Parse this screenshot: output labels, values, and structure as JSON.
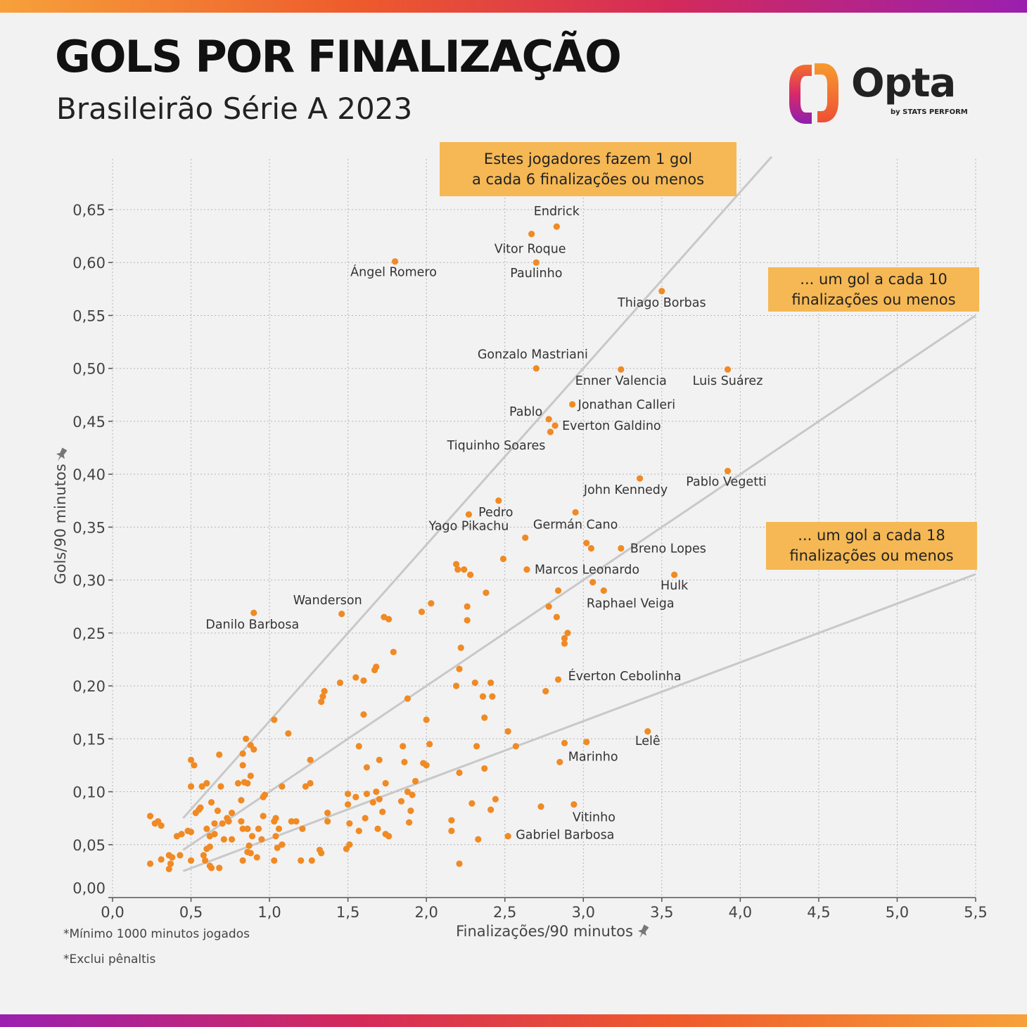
{
  "header": {
    "title": "GOLS POR FINALIZAÇÃO",
    "subtitle": "Brasileirão Série A 2023",
    "logo_text": "Opta",
    "logo_byline": "by STATS PERFORM"
  },
  "footnotes": [
    "*Mínimo 1000 minutos jogados",
    "*Exclui pênaltis"
  ],
  "callouts": [
    {
      "line1": "Estes jogadores fazem 1 gol",
      "line2": "a cada 6 finalizações ou menos"
    },
    {
      "line1": "... um gol a cada 10",
      "line2": "finalizações ou menos"
    },
    {
      "line1": "... um gol a cada 18",
      "line2": "finalizações ou menos"
    }
  ],
  "colors": {
    "point": "#f08a24",
    "ref_line": "#c8c8c8",
    "grid": "#b5b5b5",
    "callout_bg": "#f5b854"
  },
  "chart_data": {
    "type": "scatter",
    "xlabel": "Finalizações/90 minutos",
    "ylabel": "Gols/90 minutos",
    "xlim": [
      0,
      5.5
    ],
    "ylim": [
      0,
      0.65
    ],
    "xticks": [
      "0,0",
      "0,5",
      "1,0",
      "1,5",
      "2,0",
      "2,5",
      "3,0",
      "3,5",
      "4,0",
      "4,5",
      "5,0",
      "5,5"
    ],
    "yticks": [
      "0,00",
      "0,05",
      "0,10",
      "0,15",
      "0,20",
      "0,25",
      "0,30",
      "0,35",
      "0,40",
      "0,45",
      "0,50",
      "0,55",
      "0,60",
      "0,65"
    ],
    "grid": true,
    "reference_lines": [
      {
        "shots_per_goal": 6,
        "x": [
          0.45,
          4.2
        ]
      },
      {
        "shots_per_goal": 10,
        "x": [
          0.45,
          5.5
        ]
      },
      {
        "shots_per_goal": 18,
        "x": [
          0.45,
          5.5
        ]
      }
    ],
    "labeled_points": [
      {
        "name": "Endrick",
        "x": 2.83,
        "y": 0.634
      },
      {
        "name": "Vitor Roque",
        "x": 2.67,
        "y": 0.627
      },
      {
        "name": "Ángel Romero",
        "x": 1.8,
        "y": 0.601
      },
      {
        "name": "Paulinho",
        "x": 2.7,
        "y": 0.6
      },
      {
        "name": "Thiago Borbas",
        "x": 3.5,
        "y": 0.573
      },
      {
        "name": "Gonzalo Mastriani",
        "x": 2.7,
        "y": 0.5
      },
      {
        "name": "Enner Valencia",
        "x": 3.24,
        "y": 0.499
      },
      {
        "name": "Luis Suárez",
        "x": 3.92,
        "y": 0.499
      },
      {
        "name": "Jonathan Calleri",
        "x": 2.93,
        "y": 0.466
      },
      {
        "name": "Pablo",
        "x": 2.78,
        "y": 0.452
      },
      {
        "name": "Everton Galdino",
        "x": 2.82,
        "y": 0.446
      },
      {
        "name": "Tiquinho Soares",
        "x": 2.79,
        "y": 0.44
      },
      {
        "name": "John Kennedy",
        "x": 3.36,
        "y": 0.396
      },
      {
        "name": "Pablo Vegetti",
        "x": 3.92,
        "y": 0.403
      },
      {
        "name": "Pedro",
        "x": 2.46,
        "y": 0.375
      },
      {
        "name": "Yago Pikachu",
        "x": 2.27,
        "y": 0.362
      },
      {
        "name": "Germán Cano",
        "x": 2.95,
        "y": 0.364
      },
      {
        "name": "Breno Lopes",
        "x": 3.24,
        "y": 0.33
      },
      {
        "name": "Marcos Leonardo",
        "x": 2.64,
        "y": 0.31
      },
      {
        "name": "Hulk",
        "x": 3.58,
        "y": 0.305
      },
      {
        "name": "Raphael Veiga",
        "x": 3.13,
        "y": 0.29
      },
      {
        "name": "Wanderson",
        "x": 1.46,
        "y": 0.268
      },
      {
        "name": "Danilo Barbosa",
        "x": 0.9,
        "y": 0.269
      },
      {
        "name": "Éverton Cebolinha",
        "x": 2.84,
        "y": 0.206
      },
      {
        "name": "Lelê",
        "x": 3.41,
        "y": 0.157
      },
      {
        "name": "Marinho",
        "x": 2.85,
        "y": 0.128
      },
      {
        "name": "Vitinho",
        "x": 2.94,
        "y": 0.088
      },
      {
        "name": "Gabriel Barbosa",
        "x": 2.52,
        "y": 0.058
      }
    ],
    "other_points": [
      [
        3.02,
        0.147
      ],
      [
        2.88,
        0.146
      ],
      [
        2.57,
        0.143
      ],
      [
        2.52,
        0.157
      ],
      [
        2.73,
        0.086
      ],
      [
        2.76,
        0.195
      ],
      [
        2.88,
        0.245
      ],
      [
        2.9,
        0.25
      ],
      [
        2.88,
        0.24
      ],
      [
        2.84,
        0.29
      ],
      [
        2.78,
        0.275
      ],
      [
        2.83,
        0.265
      ],
      [
        3.06,
        0.298
      ],
      [
        3.02,
        0.335
      ],
      [
        3.05,
        0.33
      ],
      [
        2.63,
        0.34
      ],
      [
        2.49,
        0.32
      ],
      [
        2.38,
        0.288
      ],
      [
        2.26,
        0.275
      ],
      [
        2.26,
        0.262
      ],
      [
        2.22,
        0.236
      ],
      [
        2.21,
        0.216
      ],
      [
        2.31,
        0.203
      ],
      [
        2.41,
        0.203
      ],
      [
        2.36,
        0.19
      ],
      [
        2.42,
        0.19
      ],
      [
        2.37,
        0.17
      ],
      [
        2.32,
        0.143
      ],
      [
        2.37,
        0.122
      ],
      [
        2.21,
        0.118
      ],
      [
        2.29,
        0.089
      ],
      [
        2.44,
        0.093
      ],
      [
        2.41,
        0.083
      ],
      [
        2.33,
        0.055
      ],
      [
        2.21,
        0.032
      ],
      [
        2.16,
        0.063
      ],
      [
        2.16,
        0.073
      ],
      [
        2.19,
        0.2
      ],
      [
        2.24,
        0.31
      ],
      [
        2.19,
        0.315
      ],
      [
        2.2,
        0.31
      ],
      [
        2.28,
        0.305
      ],
      [
        2.03,
        0.278
      ],
      [
        1.97,
        0.27
      ],
      [
        2.0,
        0.168
      ],
      [
        2.02,
        0.145
      ],
      [
        1.98,
        0.127
      ],
      [
        2.0,
        0.125
      ],
      [
        1.93,
        0.11
      ],
      [
        1.88,
        0.188
      ],
      [
        1.85,
        0.143
      ],
      [
        1.86,
        0.128
      ],
      [
        1.88,
        0.1
      ],
      [
        1.91,
        0.097
      ],
      [
        1.9,
        0.082
      ],
      [
        1.89,
        0.071
      ],
      [
        1.84,
        0.091
      ],
      [
        1.76,
        0.263
      ],
      [
        1.73,
        0.265
      ],
      [
        1.79,
        0.232
      ],
      [
        1.68,
        0.218
      ],
      [
        1.67,
        0.215
      ],
      [
        1.6,
        0.205
      ],
      [
        1.55,
        0.208
      ],
      [
        1.6,
        0.173
      ],
      [
        1.57,
        0.143
      ],
      [
        1.62,
        0.123
      ],
      [
        1.7,
        0.13
      ],
      [
        1.74,
        0.108
      ],
      [
        1.68,
        0.1
      ],
      [
        1.62,
        0.098
      ],
      [
        1.66,
        0.09
      ],
      [
        1.7,
        0.093
      ],
      [
        1.72,
        0.081
      ],
      [
        1.76,
        0.058
      ],
      [
        1.74,
        0.06
      ],
      [
        1.69,
        0.065
      ],
      [
        1.61,
        0.075
      ],
      [
        1.57,
        0.063
      ],
      [
        1.55,
        0.095
      ],
      [
        1.5,
        0.098
      ],
      [
        1.5,
        0.088
      ],
      [
        1.51,
        0.07
      ],
      [
        1.51,
        0.05
      ],
      [
        1.49,
        0.046
      ],
      [
        1.45,
        0.203
      ],
      [
        1.35,
        0.195
      ],
      [
        1.34,
        0.19
      ],
      [
        1.33,
        0.185
      ],
      [
        1.26,
        0.108
      ],
      [
        1.23,
        0.105
      ],
      [
        1.26,
        0.13
      ],
      [
        1.37,
        0.072
      ],
      [
        1.37,
        0.08
      ],
      [
        1.32,
        0.045
      ],
      [
        1.27,
        0.035
      ],
      [
        1.33,
        0.042
      ],
      [
        1.21,
        0.065
      ],
      [
        1.2,
        0.035
      ],
      [
        1.17,
        0.072
      ],
      [
        1.12,
        0.155
      ],
      [
        1.14,
        0.072
      ],
      [
        1.08,
        0.105
      ],
      [
        1.06,
        0.065
      ],
      [
        1.04,
        0.075
      ],
      [
        1.03,
        0.168
      ],
      [
        1.03,
        0.072
      ],
      [
        1.04,
        0.058
      ],
      [
        1.05,
        0.047
      ],
      [
        1.08,
        0.05
      ],
      [
        1.03,
        0.035
      ],
      [
        0.97,
        0.097
      ],
      [
        0.96,
        0.095
      ],
      [
        0.96,
        0.077
      ],
      [
        0.95,
        0.055
      ],
      [
        0.93,
        0.065
      ],
      [
        0.92,
        0.038
      ],
      [
        0.9,
        0.14
      ],
      [
        0.88,
        0.144
      ],
      [
        0.85,
        0.15
      ],
      [
        0.88,
        0.115
      ],
      [
        0.84,
        0.109
      ],
      [
        0.86,
        0.108
      ],
      [
        0.83,
        0.125
      ],
      [
        0.83,
        0.136
      ],
      [
        0.82,
        0.092
      ],
      [
        0.82,
        0.072
      ],
      [
        0.83,
        0.065
      ],
      [
        0.86,
        0.065
      ],
      [
        0.89,
        0.058
      ],
      [
        0.86,
        0.065
      ],
      [
        0.87,
        0.049
      ],
      [
        0.88,
        0.042
      ],
      [
        0.83,
        0.035
      ],
      [
        0.8,
        0.108
      ],
      [
        0.68,
        0.135
      ],
      [
        0.69,
        0.105
      ],
      [
        0.76,
        0.08
      ],
      [
        0.73,
        0.075
      ],
      [
        0.7,
        0.07
      ],
      [
        0.67,
        0.082
      ],
      [
        0.63,
        0.09
      ],
      [
        0.65,
        0.07
      ],
      [
        0.65,
        0.06
      ],
      [
        0.62,
        0.058
      ],
      [
        0.6,
        0.108
      ],
      [
        0.6,
        0.065
      ],
      [
        0.6,
        0.046
      ],
      [
        0.57,
        0.105
      ],
      [
        0.56,
        0.085
      ],
      [
        0.53,
        0.08
      ],
      [
        0.55,
        0.083
      ],
      [
        0.52,
        0.125
      ],
      [
        0.5,
        0.13
      ],
      [
        0.5,
        0.105
      ],
      [
        0.5,
        0.062
      ],
      [
        0.5,
        0.035
      ],
      [
        0.48,
        0.063
      ],
      [
        0.44,
        0.06
      ],
      [
        0.41,
        0.058
      ],
      [
        0.43,
        0.04
      ],
      [
        0.38,
        0.038
      ],
      [
        0.37,
        0.032
      ],
      [
        0.36,
        0.04
      ],
      [
        0.36,
        0.027
      ],
      [
        0.31,
        0.036
      ],
      [
        0.31,
        0.068
      ],
      [
        0.29,
        0.072
      ],
      [
        0.27,
        0.07
      ],
      [
        0.24,
        0.077
      ],
      [
        0.24,
        0.032
      ],
      [
        0.59,
        0.035
      ],
      [
        0.62,
        0.03
      ],
      [
        0.63,
        0.028
      ],
      [
        0.68,
        0.028
      ],
      [
        0.76,
        0.055
      ],
      [
        0.71,
        0.055
      ],
      [
        0.62,
        0.048
      ],
      [
        0.74,
        0.072
      ],
      [
        0.58,
        0.04
      ],
      [
        0.86,
        0.043
      ]
    ]
  }
}
